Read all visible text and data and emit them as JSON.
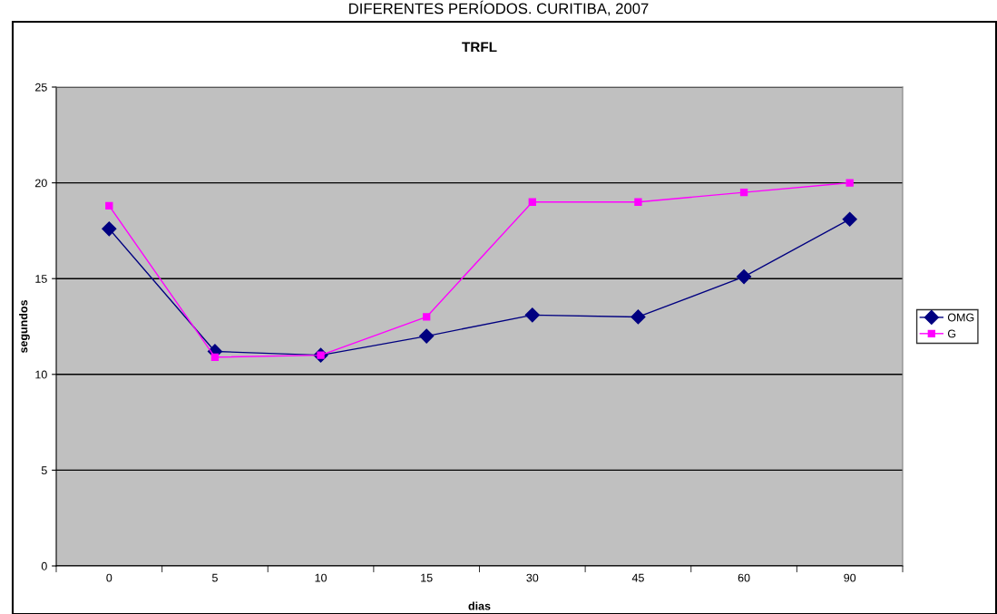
{
  "chart_data": {
    "type": "line",
    "title": "TRFL",
    "xlabel": "dias",
    "ylabel": "segundos",
    "annotations": [
      "DIFERENTES PERÍODOS. CURITIBA, 2007"
    ],
    "categories": [
      "0",
      "5",
      "10",
      "15",
      "30",
      "45",
      "60",
      "90"
    ],
    "series": [
      {
        "name": "OMG",
        "color": "#000080",
        "marker": "diamond",
        "values": [
          17.6,
          11.2,
          11.0,
          12.0,
          13.1,
          13.0,
          15.1,
          18.1
        ]
      },
      {
        "name": "G",
        "color": "#ff00ff",
        "marker": "square",
        "values": [
          18.8,
          10.9,
          11.0,
          13.0,
          19.0,
          19.0,
          19.5,
          20.0
        ]
      }
    ],
    "ylim": [
      0,
      25
    ],
    "yticks": [
      0,
      5,
      10,
      15,
      20,
      25
    ],
    "grid": "y",
    "legend": "right",
    "line_style": "solid"
  }
}
